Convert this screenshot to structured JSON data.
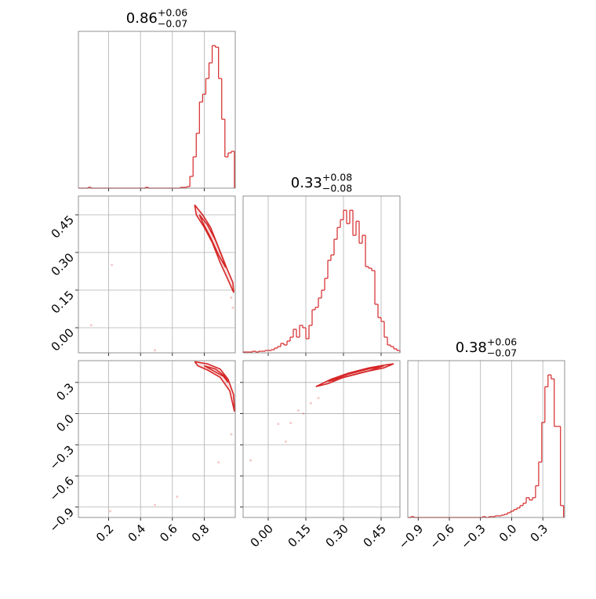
{
  "chart_data": {
    "type": "corner",
    "color": "#d62728",
    "grid": true,
    "params": [
      {
        "title": {
          "center": "0.86",
          "plus": "+0.06",
          "minus": "−0.07"
        },
        "lim": [
          0.01,
          0.995
        ],
        "ticks": [
          0.2,
          0.4,
          0.6,
          0.8
        ]
      },
      {
        "title": {
          "center": "0.33",
          "plus": "+0.08",
          "minus": "−0.08"
        },
        "lim": [
          -0.1,
          0.525
        ],
        "ticks": [
          {
            "value": 0,
            "label": "0.00"
          },
          0.15,
          {
            "value": 0.3,
            "label": "0.30"
          },
          0.45
        ]
      },
      {
        "title": {
          "center": "0.38",
          "plus": "+0.06",
          "minus": "−0.07"
        },
        "lim": [
          -1.0,
          0.51
        ],
        "ticks": [
          {
            "value": -0.9,
            "label": "−0.9"
          },
          {
            "value": -0.6,
            "label": "−0.6"
          },
          {
            "value": -0.3,
            "label": "−0.3"
          },
          {
            "value": 0,
            "label": "0.0"
          },
          0.3
        ]
      }
    ],
    "histograms": [
      {
        "bins": [
          0.01,
          0.03,
          0.05,
          0.07,
          0.09,
          0.11,
          0.13,
          0.15,
          0.17,
          0.19,
          0.21,
          0.23,
          0.25,
          0.27,
          0.29,
          0.31,
          0.33,
          0.35,
          0.37,
          0.39,
          0.41,
          0.43,
          0.45,
          0.47,
          0.49,
          0.51,
          0.53,
          0.55,
          0.57,
          0.59,
          0.61,
          0.63,
          0.65,
          0.67,
          0.69,
          0.71,
          0.73,
          0.75,
          0.77,
          0.79,
          0.81,
          0.83,
          0.85,
          0.87,
          0.89,
          0.91,
          0.93,
          0.95,
          0.97,
          0.99
        ],
        "values": [
          0,
          0,
          0,
          1,
          0,
          0,
          0,
          0,
          0,
          0,
          0,
          0,
          0,
          0,
          0,
          0,
          0,
          0,
          0,
          0,
          0,
          1,
          0,
          0,
          0,
          0,
          0,
          0,
          0,
          0,
          0,
          0,
          1,
          1,
          2,
          15,
          40,
          70,
          110,
          120,
          140,
          160,
          182,
          180,
          140,
          88,
          40,
          45,
          47
        ]
      },
      {
        "bins": [
          -0.1,
          -0.0875,
          -0.075,
          -0.0625,
          -0.05,
          -0.0375,
          -0.025,
          -0.0125,
          0,
          0.0125,
          0.025,
          0.0375,
          0.05,
          0.0625,
          0.075,
          0.0875,
          0.1,
          0.1125,
          0.125,
          0.1375,
          0.15,
          0.1625,
          0.175,
          0.1875,
          0.2,
          0.2125,
          0.225,
          0.2375,
          0.25,
          0.2625,
          0.275,
          0.2875,
          0.3,
          0.3125,
          0.325,
          0.3375,
          0.35,
          0.3625,
          0.375,
          0.3875,
          0.4,
          0.4125,
          0.425,
          0.4375,
          0.45,
          0.4625,
          0.475,
          0.4875,
          0.5,
          0.5125,
          0.525
        ],
        "values": [
          1,
          1,
          1,
          2,
          1,
          2,
          2,
          3,
          3,
          4,
          6,
          8,
          12,
          10,
          15,
          20,
          30,
          20,
          35,
          32,
          18,
          35,
          55,
          58,
          70,
          80,
          95,
          118,
          125,
          145,
          160,
          170,
          182,
          165,
          182,
          150,
          168,
          140,
          150,
          110,
          108,
          105,
          62,
          45,
          40,
          20,
          10,
          8,
          5,
          3
        ]
      },
      {
        "bins": [
          -1.0,
          -0.97,
          -0.94,
          -0.91,
          -0.88,
          -0.85,
          -0.82,
          -0.79,
          -0.76,
          -0.73,
          -0.7,
          -0.67,
          -0.64,
          -0.61,
          -0.58,
          -0.55,
          -0.52,
          -0.49,
          -0.46,
          -0.43,
          -0.4,
          -0.37,
          -0.34,
          -0.31,
          -0.28,
          -0.25,
          -0.22,
          -0.19,
          -0.16,
          -0.13,
          -0.1,
          -0.07,
          -0.04,
          -0.01,
          0.02,
          0.05,
          0.08,
          0.11,
          0.14,
          0.17,
          0.2,
          0.23,
          0.26,
          0.29,
          0.32,
          0.35,
          0.38,
          0.41,
          0.44,
          0.47,
          0.5
        ],
        "values": [
          0,
          1,
          0,
          0,
          0,
          0,
          0,
          0,
          0,
          0,
          0,
          0,
          0,
          0,
          0,
          0,
          0,
          0,
          0,
          0,
          0,
          0,
          0,
          0,
          1,
          0,
          1,
          1,
          2,
          2,
          3,
          4,
          6,
          8,
          10,
          12,
          15,
          18,
          25,
          22,
          25,
          40,
          70,
          120,
          165,
          180,
          175,
          115,
          115,
          15
        ]
      }
    ],
    "pairs": [
      {
        "contours": [
          {
            "x": [
              0.74,
              0.79,
              0.84,
              0.89,
              0.94,
              0.98,
              0.985,
              0.95,
              0.9,
              0.85,
              0.8,
              0.75,
              0.74
            ],
            "y": [
              0.49,
              0.45,
              0.4,
              0.32,
              0.24,
              0.18,
              0.14,
              0.19,
              0.26,
              0.34,
              0.4,
              0.45,
              0.49
            ]
          },
          {
            "x": [
              0.77,
              0.82,
              0.87,
              0.92,
              0.935,
              0.89,
              0.84,
              0.79,
              0.77
            ],
            "y": [
              0.45,
              0.41,
              0.35,
              0.27,
              0.24,
              0.29,
              0.36,
              0.42,
              0.45
            ]
          }
        ],
        "points": {
          "x": [
            0.09,
            0.22,
            0.49,
            0.98,
            0.97
          ],
          "y": [
            0.01,
            0.25,
            -0.09,
            0.08,
            0.12
          ]
        }
      },
      {
        "contours": [
          {
            "x": [
              0.74,
              0.82,
              0.9,
              0.95,
              0.985,
              0.99,
              0.96,
              0.9,
              0.82,
              0.76,
              0.74
            ],
            "y": [
              0.5,
              0.48,
              0.43,
              0.33,
              0.18,
              0.02,
              0.22,
              0.35,
              0.42,
              0.46,
              0.5
            ]
          },
          {
            "x": [
              0.8,
              0.87,
              0.93,
              0.95,
              0.92,
              0.86,
              0.8
            ],
            "y": [
              0.46,
              0.43,
              0.36,
              0.3,
              0.36,
              0.41,
              0.46
            ]
          }
        ],
        "points": {
          "x": [
            0.21,
            0.49,
            0.63,
            0.89,
            0.97
          ],
          "y": [
            -0.94,
            -0.88,
            -0.8,
            -0.47,
            -0.2
          ]
        }
      },
      {
        "contours": [
          {
            "x": [
              0.19,
              0.25,
              0.32,
              0.4,
              0.47,
              0.5,
              0.46,
              0.38,
              0.3,
              0.24,
              0.19
            ],
            "y": [
              0.26,
              0.33,
              0.39,
              0.44,
              0.47,
              0.48,
              0.44,
              0.4,
              0.35,
              0.29,
              0.26
            ]
          },
          {
            "x": [
              0.24,
              0.32,
              0.4,
              0.46,
              0.4,
              0.32,
              0.24
            ],
            "y": [
              0.31,
              0.38,
              0.43,
              0.46,
              0.41,
              0.36,
              0.31
            ]
          }
        ],
        "points": {
          "x": [
            -0.07,
            0.04,
            0.07,
            0.12,
            0.17,
            0.09,
            0.14,
            0.2
          ],
          "y": [
            -0.45,
            -0.1,
            -0.27,
            0.03,
            0.1,
            -0.09,
            0.0,
            0.15
          ]
        }
      }
    ]
  }
}
